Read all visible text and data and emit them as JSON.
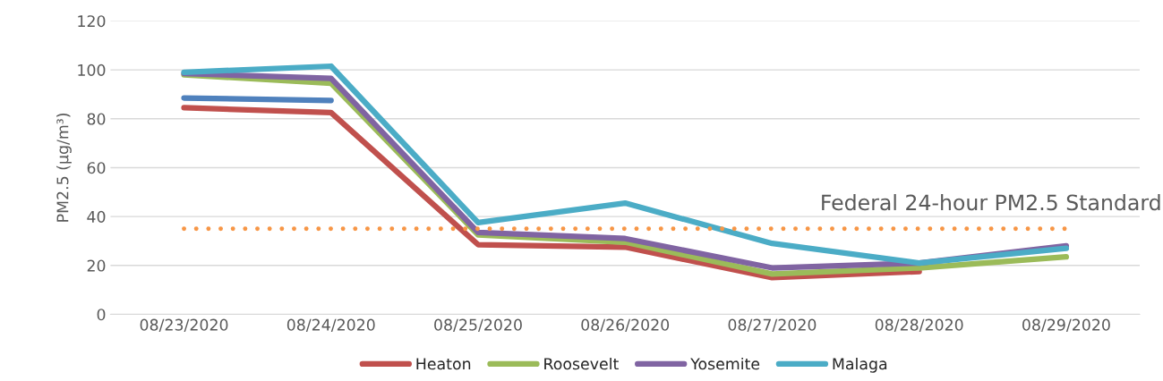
{
  "chart_data": {
    "type": "line",
    "ylabel": "PM2.5 (µg/m³)",
    "categories": [
      "08/23/2020",
      "08/24/2020",
      "08/25/2020",
      "08/26/2020",
      "08/27/2020",
      "08/28/2020",
      "08/29/2020"
    ],
    "series": [
      {
        "color": "#4f81bd",
        "values": [
          88.5,
          87.5,
          null,
          null,
          null,
          null,
          null
        ]
      },
      {
        "name": "Heaton",
        "color": "#c0504d",
        "values": [
          84.5,
          82.5,
          28.5,
          27.5,
          15,
          17.5,
          null
        ]
      },
      {
        "name": "Roosevelt",
        "color": "#9bbb59",
        "values": [
          98,
          94.5,
          32.5,
          29.5,
          16.5,
          19,
          23.5
        ]
      },
      {
        "name": "Yosemite",
        "color": "#8064a2",
        "values": [
          98.5,
          96.5,
          33.5,
          31,
          19,
          21,
          28
        ]
      },
      {
        "name": "Malaga",
        "color": "#4bacc6",
        "values": [
          99,
          101.5,
          37.5,
          45.5,
          29,
          21,
          27
        ]
      }
    ],
    "ylim": [
      0,
      120
    ],
    "yticks": [
      0,
      20,
      40,
      60,
      80,
      100,
      120
    ],
    "grid": "y",
    "legend": "bottom",
    "marker": "none",
    "line_style": "solid",
    "ref_lines": [
      {
        "axis": "y",
        "value": 35,
        "label": "Federal 24-hour PM2.5 Standard",
        "color": "#f79646",
        "line_style": "dotted"
      }
    ]
  }
}
